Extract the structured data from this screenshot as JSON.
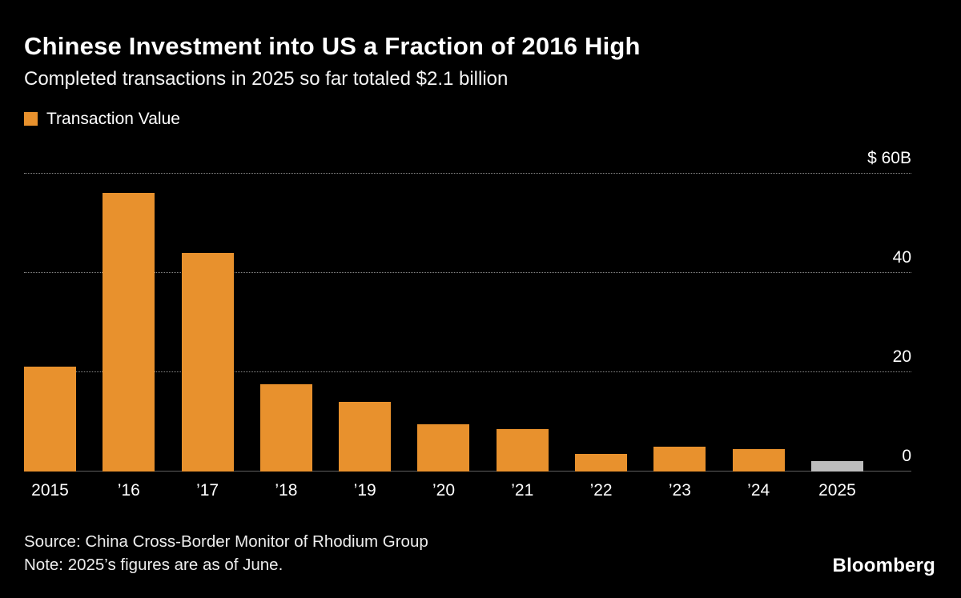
{
  "header": {
    "title": "Chinese Investment into US a Fraction of 2016 High",
    "subtitle": "Completed transactions in 2025 so far totaled $2.1 billion"
  },
  "legend": {
    "label": "Transaction Value",
    "swatch_color": "#E8912D"
  },
  "chart_data": {
    "type": "bar",
    "title": "Chinese Investment into US a Fraction of 2016 High",
    "categories": [
      "2015",
      "’16",
      "’17",
      "’18",
      "’19",
      "’20",
      "’21",
      "’22",
      "’23",
      "’24",
      "2025"
    ],
    "values": [
      21,
      56,
      44,
      17.5,
      14,
      9.5,
      8.5,
      3.5,
      5,
      4.5,
      2.1
    ],
    "unit": "billions USD",
    "ylim": [
      0,
      60
    ],
    "yticks": [
      0,
      20,
      40,
      60
    ],
    "ytick_labels": [
      "0",
      "20",
      "40",
      "$ 60B"
    ],
    "grid": "horizontal dotted",
    "legend_position": "top-left",
    "bar_color": "#E8912D",
    "highlight_color": "#BDBDBD",
    "highlight_index": 10,
    "background": "#000000"
  },
  "footer": {
    "source": "Source: China Cross-Border Monitor of Rhodium Group",
    "note": "Note: 2025’s figures are as of June.",
    "brand": "Bloomberg"
  }
}
